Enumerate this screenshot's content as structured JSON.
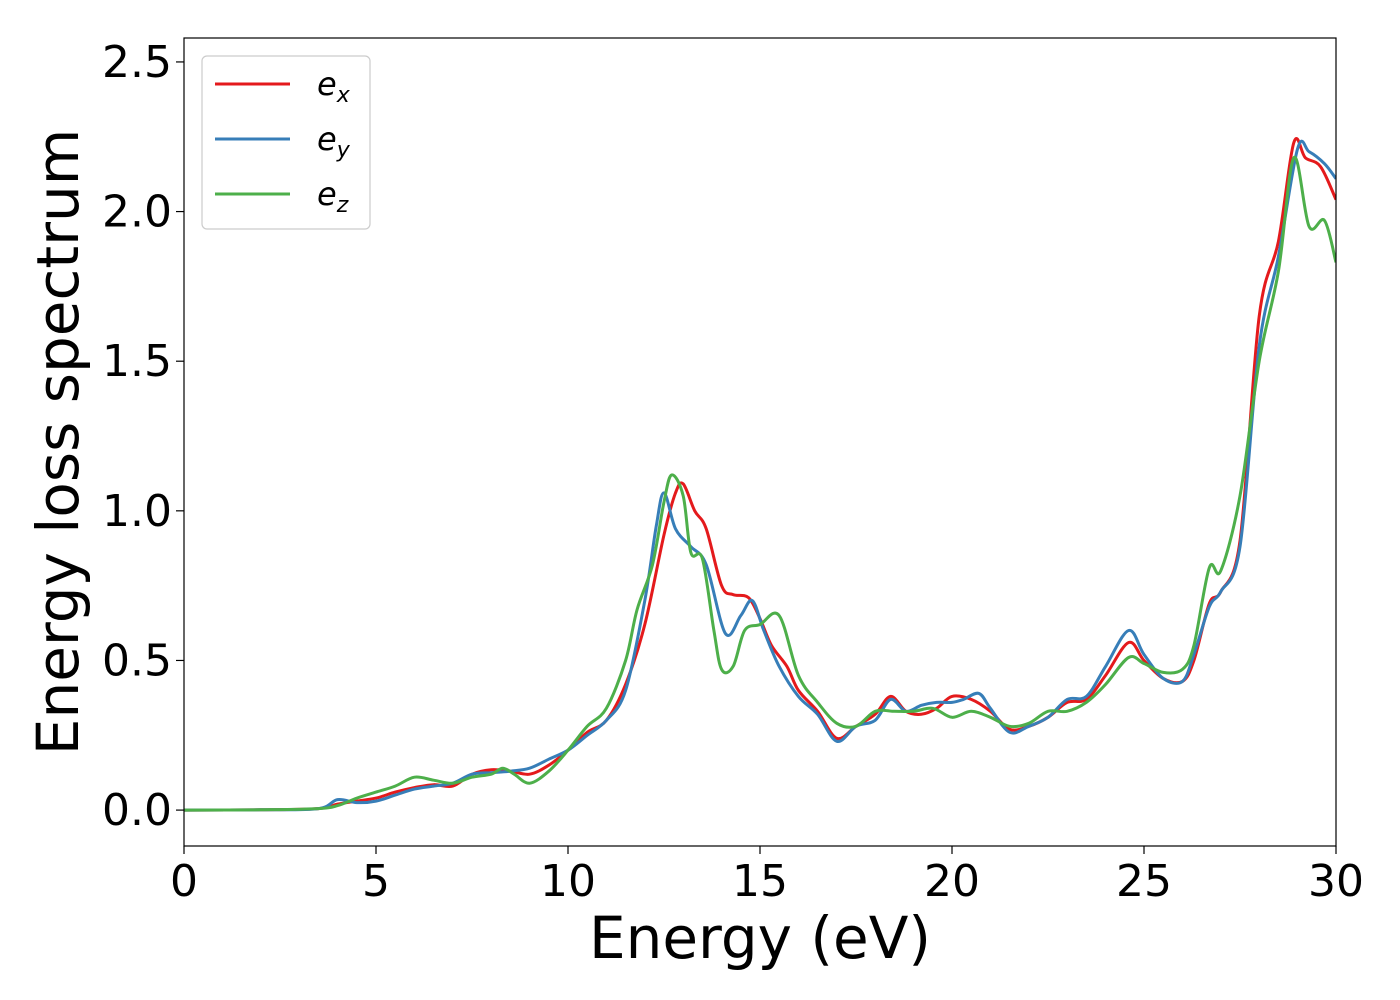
{
  "chart_data": {
    "type": "line",
    "title": "",
    "xlabel": "Energy (eV)",
    "ylabel": "Energy loss spectrum",
    "xlim": [
      0,
      30
    ],
    "ylim": [
      -0.12,
      2.58
    ],
    "xticks": [
      0,
      5,
      10,
      15,
      20,
      25,
      30
    ],
    "xtick_labels": [
      "0",
      "5",
      "10",
      "15",
      "20",
      "25",
      "30"
    ],
    "yticks": [
      0.0,
      0.5,
      1.0,
      1.5,
      2.0,
      2.5
    ],
    "ytick_labels": [
      "0.0",
      "0.5",
      "1.0",
      "1.5",
      "2.0",
      "2.5"
    ],
    "grid": false,
    "legend_position": "top-left",
    "series": [
      {
        "name": "e",
        "subscript": "x",
        "color": "#e41a1c",
        "points": [
          [
            0,
            0
          ],
          [
            2,
            0.001
          ],
          [
            3.5,
            0.005
          ],
          [
            4,
            0.02
          ],
          [
            4.5,
            0.03
          ],
          [
            5,
            0.04
          ],
          [
            5.5,
            0.06
          ],
          [
            6,
            0.075
          ],
          [
            6.5,
            0.085
          ],
          [
            7,
            0.08
          ],
          [
            7.5,
            0.12
          ],
          [
            8,
            0.135
          ],
          [
            8.5,
            0.13
          ],
          [
            9,
            0.12
          ],
          [
            9.5,
            0.15
          ],
          [
            10,
            0.2
          ],
          [
            10.5,
            0.26
          ],
          [
            11,
            0.3
          ],
          [
            11.5,
            0.42
          ],
          [
            12,
            0.62
          ],
          [
            12.5,
            0.92
          ],
          [
            12.8,
            1.06
          ],
          [
            13,
            1.09
          ],
          [
            13.3,
            1.0
          ],
          [
            13.6,
            0.94
          ],
          [
            14,
            0.75
          ],
          [
            14.3,
            0.72
          ],
          [
            14.7,
            0.71
          ],
          [
            15,
            0.64
          ],
          [
            15.3,
            0.55
          ],
          [
            15.7,
            0.48
          ],
          [
            16,
            0.4
          ],
          [
            16.5,
            0.33
          ],
          [
            17,
            0.24
          ],
          [
            17.5,
            0.28
          ],
          [
            18,
            0.32
          ],
          [
            18.4,
            0.38
          ],
          [
            18.8,
            0.33
          ],
          [
            19.2,
            0.32
          ],
          [
            19.6,
            0.34
          ],
          [
            20,
            0.38
          ],
          [
            20.5,
            0.37
          ],
          [
            21,
            0.33
          ],
          [
            21.5,
            0.27
          ],
          [
            22,
            0.28
          ],
          [
            22.5,
            0.31
          ],
          [
            23,
            0.36
          ],
          [
            23.5,
            0.37
          ],
          [
            24,
            0.45
          ],
          [
            24.6,
            0.56
          ],
          [
            25,
            0.5
          ],
          [
            25.5,
            0.44
          ],
          [
            26,
            0.43
          ],
          [
            26.3,
            0.5
          ],
          [
            26.7,
            0.69
          ],
          [
            27,
            0.73
          ],
          [
            27.5,
            0.9
          ],
          [
            28,
            1.65
          ],
          [
            28.5,
            1.9
          ],
          [
            28.9,
            2.23
          ],
          [
            29.2,
            2.18
          ],
          [
            29.6,
            2.15
          ],
          [
            30,
            2.04
          ]
        ]
      },
      {
        "name": "e",
        "subscript": "y",
        "color": "#377eb8",
        "points": [
          [
            0,
            0
          ],
          [
            2,
            0.001
          ],
          [
            3.5,
            0.005
          ],
          [
            4,
            0.035
          ],
          [
            4.5,
            0.025
          ],
          [
            5,
            0.03
          ],
          [
            5.5,
            0.05
          ],
          [
            6,
            0.07
          ],
          [
            6.5,
            0.08
          ],
          [
            7,
            0.09
          ],
          [
            7.5,
            0.12
          ],
          [
            8,
            0.125
          ],
          [
            8.5,
            0.13
          ],
          [
            9,
            0.14
          ],
          [
            9.5,
            0.17
          ],
          [
            10,
            0.2
          ],
          [
            10.5,
            0.25
          ],
          [
            11,
            0.3
          ],
          [
            11.5,
            0.4
          ],
          [
            12,
            0.7
          ],
          [
            12.3,
            0.95
          ],
          [
            12.5,
            1.06
          ],
          [
            12.8,
            0.94
          ],
          [
            13.2,
            0.88
          ],
          [
            13.6,
            0.82
          ],
          [
            14.1,
            0.59
          ],
          [
            14.5,
            0.65
          ],
          [
            14.8,
            0.7
          ],
          [
            15.1,
            0.6
          ],
          [
            15.5,
            0.48
          ],
          [
            16,
            0.38
          ],
          [
            16.5,
            0.32
          ],
          [
            17,
            0.23
          ],
          [
            17.5,
            0.28
          ],
          [
            18,
            0.3
          ],
          [
            18.4,
            0.37
          ],
          [
            18.8,
            0.33
          ],
          [
            19.2,
            0.35
          ],
          [
            19.6,
            0.36
          ],
          [
            20,
            0.36
          ],
          [
            20.3,
            0.37
          ],
          [
            20.7,
            0.39
          ],
          [
            21,
            0.34
          ],
          [
            21.5,
            0.26
          ],
          [
            22,
            0.28
          ],
          [
            22.5,
            0.31
          ],
          [
            23,
            0.37
          ],
          [
            23.5,
            0.38
          ],
          [
            24,
            0.48
          ],
          [
            24.6,
            0.6
          ],
          [
            25,
            0.52
          ],
          [
            25.5,
            0.44
          ],
          [
            26,
            0.43
          ],
          [
            26.3,
            0.52
          ],
          [
            26.7,
            0.68
          ],
          [
            27,
            0.73
          ],
          [
            27.5,
            0.88
          ],
          [
            28,
            1.55
          ],
          [
            28.5,
            1.85
          ],
          [
            29,
            2.21
          ],
          [
            29.3,
            2.2
          ],
          [
            29.7,
            2.16
          ],
          [
            30,
            2.11
          ]
        ]
      },
      {
        "name": "e",
        "subscript": "z",
        "color": "#4daf4a",
        "points": [
          [
            0,
            0
          ],
          [
            2,
            0.001
          ],
          [
            3.5,
            0.005
          ],
          [
            4,
            0.015
          ],
          [
            4.5,
            0.04
          ],
          [
            5,
            0.06
          ],
          [
            5.5,
            0.08
          ],
          [
            6,
            0.11
          ],
          [
            6.5,
            0.1
          ],
          [
            7,
            0.09
          ],
          [
            7.5,
            0.11
          ],
          [
            8,
            0.12
          ],
          [
            8.3,
            0.14
          ],
          [
            8.6,
            0.12
          ],
          [
            9,
            0.09
          ],
          [
            9.5,
            0.13
          ],
          [
            10,
            0.2
          ],
          [
            10.5,
            0.28
          ],
          [
            11,
            0.34
          ],
          [
            11.5,
            0.5
          ],
          [
            11.8,
            0.67
          ],
          [
            12.2,
            0.82
          ],
          [
            12.5,
            1.03
          ],
          [
            12.7,
            1.12
          ],
          [
            13,
            1.05
          ],
          [
            13.2,
            0.86
          ],
          [
            13.5,
            0.84
          ],
          [
            13.8,
            0.6
          ],
          [
            14,
            0.47
          ],
          [
            14.3,
            0.48
          ],
          [
            14.6,
            0.6
          ],
          [
            15,
            0.62
          ],
          [
            15.5,
            0.65
          ],
          [
            16,
            0.45
          ],
          [
            16.5,
            0.36
          ],
          [
            17,
            0.29
          ],
          [
            17.5,
            0.28
          ],
          [
            18,
            0.33
          ],
          [
            18.5,
            0.33
          ],
          [
            19,
            0.33
          ],
          [
            19.5,
            0.34
          ],
          [
            20,
            0.31
          ],
          [
            20.5,
            0.33
          ],
          [
            21,
            0.31
          ],
          [
            21.5,
            0.28
          ],
          [
            22,
            0.29
          ],
          [
            22.5,
            0.33
          ],
          [
            23,
            0.33
          ],
          [
            23.5,
            0.36
          ],
          [
            24,
            0.42
          ],
          [
            24.6,
            0.51
          ],
          [
            25,
            0.49
          ],
          [
            25.5,
            0.46
          ],
          [
            26,
            0.47
          ],
          [
            26.3,
            0.55
          ],
          [
            26.7,
            0.81
          ],
          [
            27,
            0.8
          ],
          [
            27.5,
            1.05
          ],
          [
            28,
            1.5
          ],
          [
            28.5,
            1.8
          ],
          [
            28.9,
            2.18
          ],
          [
            29.3,
            1.95
          ],
          [
            29.7,
            1.97
          ],
          [
            30,
            1.83
          ]
        ]
      }
    ]
  }
}
